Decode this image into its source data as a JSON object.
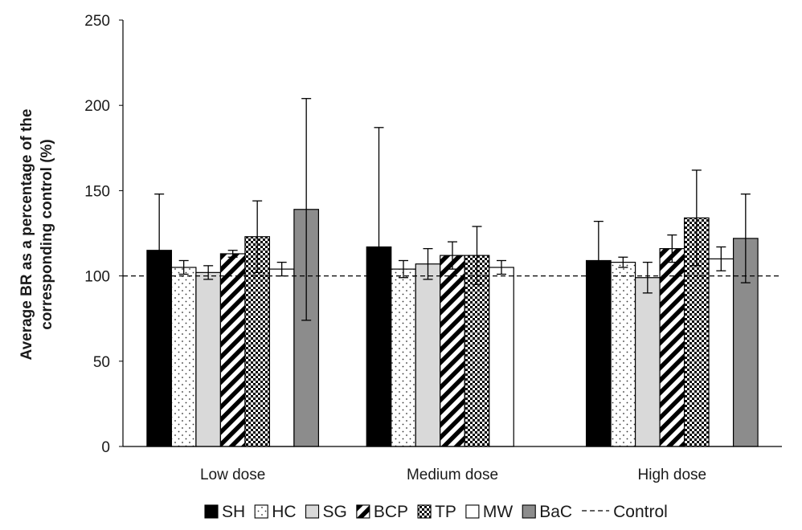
{
  "chart_data": {
    "type": "bar",
    "title": "",
    "xlabel": "",
    "ylabel_lines": [
      "Average BR as  a percentage of the",
      "corresponding control (%)"
    ],
    "ylim": [
      0,
      250
    ],
    "yticks": [
      0,
      50,
      100,
      150,
      200,
      250
    ],
    "categories": [
      "Low dose",
      "Medium dose",
      "High dose"
    ],
    "series": [
      {
        "name": "SH",
        "values": [
          115,
          117,
          109
        ],
        "errors": [
          33,
          70,
          23
        ],
        "fill": "#000000",
        "pattern": "solid"
      },
      {
        "name": "HC",
        "values": [
          105,
          104,
          108
        ],
        "errors": [
          4,
          5,
          3
        ],
        "fill": "#ffffff",
        "pattern": "dots"
      },
      {
        "name": "SG",
        "values": [
          102,
          107,
          99
        ],
        "errors": [
          4,
          9,
          9
        ],
        "fill": "#d9d9d9",
        "pattern": "solid"
      },
      {
        "name": "BCP",
        "values": [
          113,
          112,
          116
        ],
        "errors": [
          2,
          8,
          8
        ],
        "fill": "#ffffff",
        "pattern": "diagonal"
      },
      {
        "name": "TP",
        "values": [
          123,
          112,
          134
        ],
        "errors": [
          21,
          17,
          28
        ],
        "fill": "#ffffff",
        "pattern": "checker"
      },
      {
        "name": "MW",
        "values": [
          104,
          105,
          110
        ],
        "errors": [
          4,
          4,
          7
        ],
        "fill": "#ffffff",
        "pattern": "solid"
      },
      {
        "name": "BaC",
        "values": [
          139,
          null,
          122
        ],
        "errors": [
          65,
          null,
          26
        ],
        "fill": "#8c8c8c",
        "pattern": "solid"
      }
    ],
    "reference_line": {
      "name": "Control",
      "value": 100,
      "style": "dashed"
    },
    "legend": {
      "position": "bottom",
      "entries": [
        "SH",
        "HC",
        "SG",
        "BCP",
        "TP",
        "MW",
        "BaC",
        "Control"
      ]
    },
    "grid": false
  }
}
